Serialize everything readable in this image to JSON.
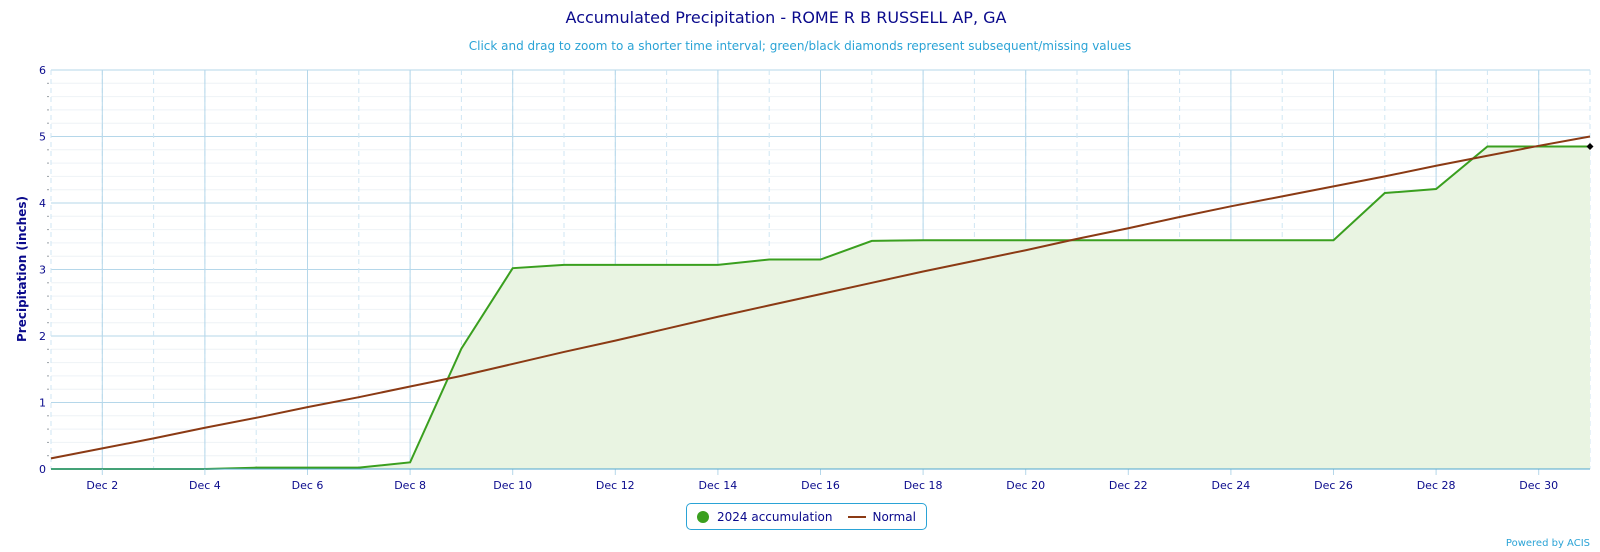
{
  "colors": {
    "accumulation_line": "#3a9f1f",
    "accumulation_fill": "#e9f4e2",
    "normal_line": "#8b3a14",
    "grid": "#b5d7ea",
    "missing_marker": "#000000",
    "text": "#0a0a8c",
    "accent": "#2aa3d6"
  },
  "chart_data": {
    "type": "area",
    "title": "Accumulated Precipitation - ROME R B RUSSELL AP, GA",
    "subtitle": "Click and drag to zoom to a shorter time interval; green/black diamonds represent subsequent/missing values",
    "xlabel": "",
    "ylabel": "Precipitation (inches)",
    "ylim": [
      0,
      6
    ],
    "yticks": [
      0,
      1,
      2,
      3,
      4,
      5,
      6
    ],
    "xlim": [
      1,
      31
    ],
    "xticks": [
      {
        "x": 2,
        "label": "Dec 2"
      },
      {
        "x": 4,
        "label": "Dec 4"
      },
      {
        "x": 6,
        "label": "Dec 6"
      },
      {
        "x": 8,
        "label": "Dec 8"
      },
      {
        "x": 10,
        "label": "Dec 10"
      },
      {
        "x": 12,
        "label": "Dec 12"
      },
      {
        "x": 14,
        "label": "Dec 14"
      },
      {
        "x": 16,
        "label": "Dec 16"
      },
      {
        "x": 18,
        "label": "Dec 18"
      },
      {
        "x": 20,
        "label": "Dec 20"
      },
      {
        "x": 22,
        "label": "Dec 22"
      },
      {
        "x": 24,
        "label": "Dec 24"
      },
      {
        "x": 26,
        "label": "Dec 26"
      },
      {
        "x": 28,
        "label": "Dec 28"
      },
      {
        "x": 30,
        "label": "Dec 30"
      }
    ],
    "grid": true,
    "legend_position": "bottom-center",
    "series": [
      {
        "name": "2024 accumulation",
        "style": "area",
        "x": [
          1,
          2,
          3,
          4,
          5,
          6,
          7,
          8,
          9,
          10,
          11,
          12,
          13,
          14,
          15,
          16,
          17,
          18,
          19,
          20,
          21,
          22,
          23,
          24,
          25,
          26,
          27,
          28,
          29,
          30,
          31
        ],
        "values": [
          0,
          0,
          0,
          0,
          0.02,
          0.02,
          0.02,
          0.1,
          1.81,
          3.02,
          3.07,
          3.07,
          3.07,
          3.07,
          3.15,
          3.15,
          3.43,
          3.44,
          3.44,
          3.44,
          3.44,
          3.44,
          3.44,
          3.44,
          3.44,
          3.44,
          4.15,
          4.21,
          4.85,
          4.85,
          4.85
        ]
      },
      {
        "name": "Normal",
        "style": "line",
        "x": [
          1,
          2,
          3,
          4,
          5,
          6,
          7,
          8,
          9,
          10,
          11,
          12,
          13,
          14,
          15,
          16,
          17,
          18,
          19,
          20,
          21,
          22,
          23,
          24,
          25,
          26,
          27,
          28,
          29,
          30,
          31
        ],
        "values": [
          0.16,
          0.31,
          0.46,
          0.62,
          0.77,
          0.93,
          1.08,
          1.24,
          1.4,
          1.58,
          1.76,
          1.93,
          2.11,
          2.29,
          2.46,
          2.63,
          2.8,
          2.97,
          3.13,
          3.29,
          3.46,
          3.62,
          3.79,
          3.95,
          4.1,
          4.25,
          4.4,
          4.56,
          4.71,
          4.86,
          5.0
        ]
      }
    ],
    "markers": [
      {
        "x": 31,
        "y": 4.85,
        "shape": "diamond",
        "color": "#000000"
      }
    ]
  },
  "legend": {
    "items": [
      {
        "label": "2024 accumulation"
      },
      {
        "label": "Normal"
      }
    ]
  },
  "credit": "Powered by ACIS"
}
